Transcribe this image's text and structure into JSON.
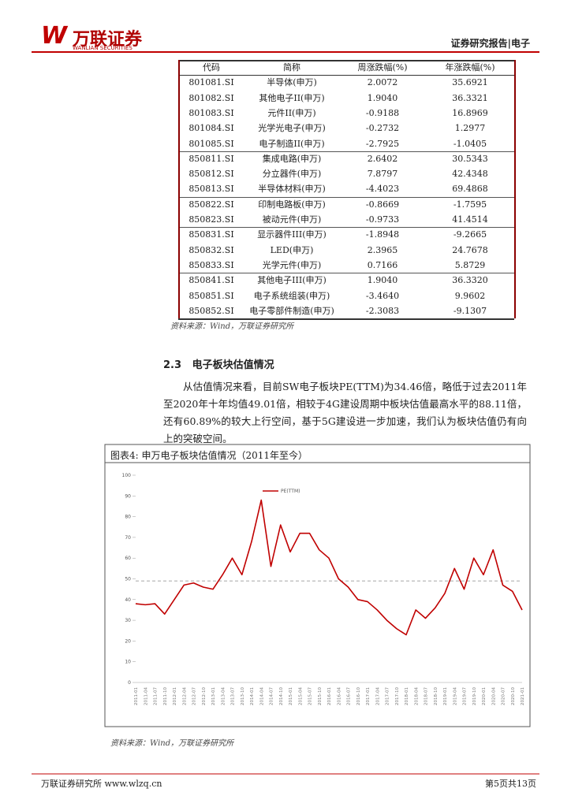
{
  "header": {
    "logo_name": "万联证券",
    "logo_sub": "WANLIAN SECURITIES",
    "report_tag": "证券研究报告|电子"
  },
  "table": {
    "columns": [
      "代码",
      "简称",
      "周涨跌幅(%)",
      "年涨跌幅(%)"
    ],
    "rows": [
      [
        "801081.SI",
        "半导体(申万)",
        "2.0072",
        "35.6921"
      ],
      [
        "801082.SI",
        "其他电子II(申万)",
        "1.9040",
        "36.3321"
      ],
      [
        "801083.SI",
        "元件II(申万)",
        "-0.9188",
        "16.8969"
      ],
      [
        "801084.SI",
        "光学光电子(申万)",
        "-0.2732",
        "1.2977"
      ],
      [
        "801085.SI",
        "电子制造II(申万)",
        "-2.7925",
        "-1.0405"
      ],
      [
        "850811.SI",
        "集成电路(申万)",
        "2.6402",
        "30.5343"
      ],
      [
        "850812.SI",
        "分立器件(申万)",
        "7.8797",
        "42.4348"
      ],
      [
        "850813.SI",
        "半导体材料(申万)",
        "-4.4023",
        "69.4868"
      ],
      [
        "850822.SI",
        "印制电路板(申万)",
        "-0.8669",
        "-1.7595"
      ],
      [
        "850823.SI",
        "被动元件(申万)",
        "-0.9733",
        "41.4514"
      ],
      [
        "850831.SI",
        "显示器件III(申万)",
        "-1.8948",
        "-9.2665"
      ],
      [
        "850832.SI",
        "LED(申万)",
        "2.3965",
        "24.7678"
      ],
      [
        "850833.SI",
        "光学元件(申万)",
        "0.7166",
        "5.8729"
      ],
      [
        "850841.SI",
        "其他电子III(申万)",
        "1.9040",
        "36.3320"
      ],
      [
        "850851.SI",
        "电子系统组装(申万)",
        "-3.4640",
        "9.9602"
      ],
      [
        "850852.SI",
        "电子零部件制造(申万)",
        "-2.3083",
        "-9.1307"
      ]
    ],
    "source": "资料来源：Wind，万联证券研究所"
  },
  "section": {
    "number": "2.3",
    "title": "电子板块估值情况"
  },
  "paragraph": "从估值情况来看，目前SW电子板块PE(TTM)为34.46倍，略低于过去2011年至2020年十年均值49.01倍，相较于4G建设周期中板块估值最高水平的88.11倍，还有60.89%的较大上行空间，基于5G建设进一步加速，我们认为板块估值仍有向上的突破空间。",
  "figure": {
    "title": "图表4:  申万电子板块估值情况（2011年至今）",
    "source": "资料来源：Wind，万联证券研究所"
  },
  "chart_data": {
    "type": "line",
    "categories": [
      "2011-01",
      "2011-04",
      "2011-07",
      "2011-10",
      "2012-01",
      "2012-04",
      "2012-07",
      "2012-10",
      "2013-01",
      "2013-04",
      "2013-07",
      "2013-10",
      "2014-01",
      "2014-04",
      "2014-07",
      "2014-10",
      "2015-01",
      "2015-04",
      "2015-07",
      "2015-10",
      "2016-01",
      "2016-04",
      "2016-07",
      "2016-10",
      "2017-01",
      "2017-04",
      "2017-07",
      "2017-10",
      "2018-01",
      "2018-04",
      "2018-07",
      "2018-10",
      "2019-01",
      "2019-04",
      "2019-07",
      "2019-10",
      "2020-01",
      "2020-04",
      "2020-07",
      "2020-10",
      "2021-01"
    ],
    "series": [
      {
        "name": "PE(TTM)",
        "color": "#c00000",
        "values": [
          38,
          37.5,
          38,
          33,
          40,
          47,
          48,
          46,
          45,
          52,
          60,
          52,
          68,
          88,
          56,
          76,
          63,
          72,
          72,
          64,
          60,
          50,
          46,
          40,
          39,
          35,
          30,
          26,
          23,
          35,
          31,
          36,
          43,
          55,
          45,
          60,
          52,
          64,
          47,
          44,
          35
        ]
      }
    ],
    "reference_line": 49.01,
    "ylim": [
      0,
      100
    ],
    "yticks": [
      0,
      10,
      20,
      30,
      40,
      50,
      60,
      70,
      80,
      90,
      100
    ]
  },
  "footer": {
    "left": "万联证券研究所 www.wlzq.cn",
    "right": "第5页共13页"
  }
}
